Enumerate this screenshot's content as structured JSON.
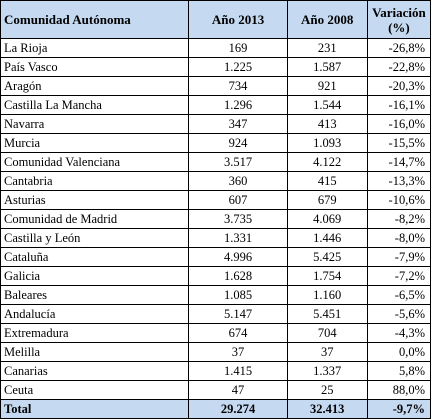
{
  "headers": {
    "region": "Comunidad Autónoma",
    "year_2013": "Año 2013",
    "year_2008": "Año 2008",
    "variation": "Variación",
    "variation_unit": "(%)"
  },
  "rows": [
    {
      "region": "La Rioja",
      "y2013": "169",
      "y2008": "231",
      "variation": "-26,8%"
    },
    {
      "region": "País Vasco",
      "y2013": "1.225",
      "y2008": "1.587",
      "variation": "-22,8%"
    },
    {
      "region": "Aragón",
      "y2013": "734",
      "y2008": "921",
      "variation": "-20,3%"
    },
    {
      "region": "Castilla La Mancha",
      "y2013": "1.296",
      "y2008": "1.544",
      "variation": "-16,1%"
    },
    {
      "region": "Navarra",
      "y2013": "347",
      "y2008": "413",
      "variation": "-16,0%"
    },
    {
      "region": "Murcia",
      "y2013": "924",
      "y2008": "1.093",
      "variation": "-15,5%"
    },
    {
      "region": "Comunidad Valenciana",
      "y2013": "3.517",
      "y2008": "4.122",
      "variation": "-14,7%"
    },
    {
      "region": "Cantabria",
      "y2013": "360",
      "y2008": "415",
      "variation": "-13,3%"
    },
    {
      "region": "Asturias",
      "y2013": "607",
      "y2008": "679",
      "variation": "-10,6%"
    },
    {
      "region": "Comunidad de Madrid",
      "y2013": "3.735",
      "y2008": "4.069",
      "variation": "-8,2%"
    },
    {
      "region": "Castilla y León",
      "y2013": "1.331",
      "y2008": "1.446",
      "variation": "-8,0%"
    },
    {
      "region": "Cataluña",
      "y2013": "4.996",
      "y2008": "5.425",
      "variation": "-7,9%"
    },
    {
      "region": "Galicia",
      "y2013": "1.628",
      "y2008": "1.754",
      "variation": "-7,2%"
    },
    {
      "region": "Baleares",
      "y2013": "1.085",
      "y2008": "1.160",
      "variation": "-6,5%"
    },
    {
      "region": "Andalucía",
      "y2013": "5.147",
      "y2008": "5.451",
      "variation": "-5,6%"
    },
    {
      "region": "Extremadura",
      "y2013": "674",
      "y2008": "704",
      "variation": "-4,3%"
    },
    {
      "region": "Melilla",
      "y2013": "37",
      "y2008": "37",
      "variation": "0,0%"
    },
    {
      "region": "Canarias",
      "y2013": "1.415",
      "y2008": "1.337",
      "variation": "5,8%"
    },
    {
      "region": "Ceuta",
      "y2013": "47",
      "y2008": "25",
      "variation": "88,0%"
    }
  ],
  "total": {
    "label": "Total",
    "y2013": "29.274",
    "y2008": "32.413",
    "variation": "-9,7%"
  },
  "colors": {
    "header_fill": "#c5d9f1",
    "border": "#000000"
  }
}
